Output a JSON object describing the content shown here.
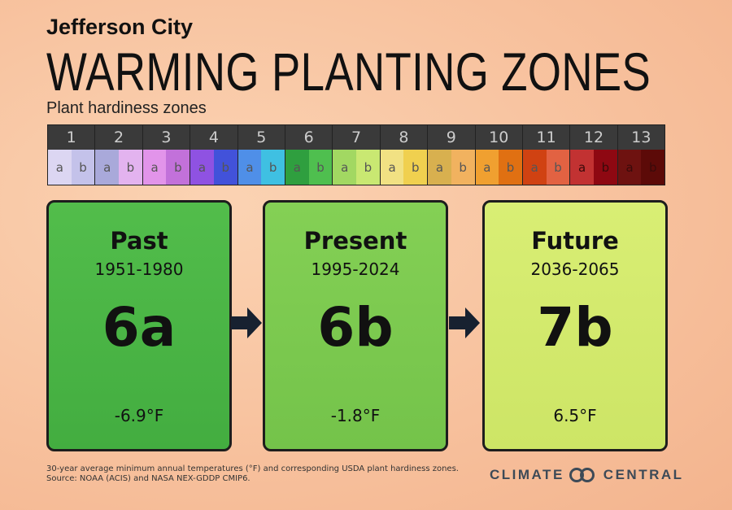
{
  "header": {
    "city": "Jefferson City",
    "title": "WARMING PLANTING ZONES",
    "subtitle": "Plant hardiness zones"
  },
  "legend": {
    "zones": [
      {
        "zone": "1",
        "halves": [
          "a",
          "b"
        ]
      },
      {
        "zone": "2",
        "halves": [
          "a",
          "b"
        ]
      },
      {
        "zone": "3",
        "halves": [
          "a",
          "b"
        ]
      },
      {
        "zone": "4",
        "halves": [
          "a",
          "b"
        ]
      },
      {
        "zone": "5",
        "halves": [
          "a",
          "b"
        ]
      },
      {
        "zone": "6",
        "halves": [
          "a",
          "b"
        ]
      },
      {
        "zone": "7",
        "halves": [
          "a",
          "b"
        ]
      },
      {
        "zone": "8",
        "halves": [
          "a",
          "b"
        ]
      },
      {
        "zone": "9",
        "halves": [
          "a",
          "b"
        ]
      },
      {
        "zone": "10",
        "halves": [
          "a",
          "b"
        ]
      },
      {
        "zone": "11",
        "halves": [
          "a",
          "b"
        ]
      },
      {
        "zone": "12",
        "halves": [
          "a",
          "b"
        ]
      },
      {
        "zone": "13",
        "halves": [
          "a",
          "b"
        ]
      }
    ]
  },
  "cards": [
    {
      "label": "Past",
      "years": "1951-1980",
      "zone": "6a",
      "temp": "-6.9°F"
    },
    {
      "label": "Present",
      "years": "1995-2024",
      "zone": "6b",
      "temp": "-1.8°F"
    },
    {
      "label": "Future",
      "years": "2036-2065",
      "zone": "7b",
      "temp": "6.5°F"
    }
  ],
  "footer": {
    "note": "30-year average minimum annual temperatures (°F) and corresponding USDA plant hardiness zones.",
    "source": "Source: NOAA (ACIS) and NASA NEX-GDDP CMIP6.",
    "logo": [
      "CLIMATE",
      "CENTRAL"
    ]
  }
}
